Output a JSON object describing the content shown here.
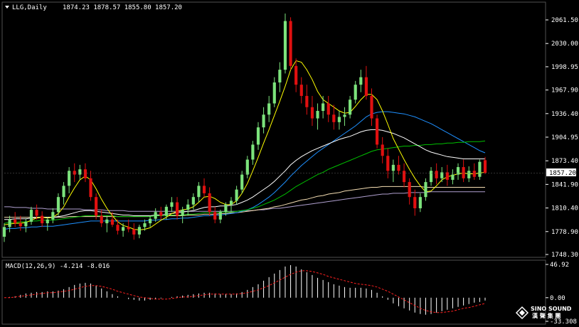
{
  "header": {
    "symbol": "LLG,Daily",
    "ohlc": "1874.23 1878.57 1855.80 1857.20"
  },
  "current_price": "1857.20",
  "price_axis": {
    "ticks": [
      "2061.50",
      "2030.00",
      "1998.95",
      "1967.90",
      "1936.40",
      "1904.95",
      "1873.40",
      "1841.90",
      "1810.40",
      "1778.90",
      "1748.30"
    ]
  },
  "macd_panel": {
    "label": "MACD(12,26,9) -4.214 -8.016",
    "ticks": [
      "46.92",
      "0.00",
      "-33.308"
    ]
  },
  "logo": {
    "name": "SINO SOUND",
    "sub": "漢 聲 集 團"
  },
  "colors": {
    "background": "#000000",
    "bull_candle": "#7ce37c",
    "bear_candle": "#e01010",
    "ma_fast": "#ffff00",
    "ma_mid": "#ffffff",
    "ma_green": "#00c000",
    "ma_blue": "#1e90ff",
    "ma_beige": "#f5deb3",
    "ma_violet": "#b0a0d0",
    "macd_hist": "#ffffff",
    "macd_signal": "#ff2020",
    "grid": "#3a3a3a",
    "price_box": "#ffffff"
  },
  "chart_data": [
    {
      "type": "candlestick",
      "title": "LLG,Daily",
      "ylim": [
        1748.3,
        2075
      ],
      "candles": [
        [
          1772,
          1790,
          1765,
          1785
        ],
        [
          1785,
          1800,
          1778,
          1795
        ],
        [
          1795,
          1805,
          1785,
          1790
        ],
        [
          1790,
          1800,
          1780,
          1786
        ],
        [
          1786,
          1796,
          1778,
          1792
        ],
        [
          1792,
          1812,
          1788,
          1808
        ],
        [
          1808,
          1815,
          1795,
          1800
        ],
        [
          1800,
          1806,
          1785,
          1790
        ],
        [
          1790,
          1798,
          1780,
          1795
        ],
        [
          1795,
          1810,
          1790,
          1805
        ],
        [
          1805,
          1830,
          1800,
          1825
        ],
        [
          1825,
          1845,
          1815,
          1840
        ],
        [
          1840,
          1865,
          1830,
          1860
        ],
        [
          1860,
          1870,
          1845,
          1855
        ],
        [
          1855,
          1868,
          1848,
          1862
        ],
        [
          1862,
          1870,
          1845,
          1850
        ],
        [
          1850,
          1860,
          1820,
          1825
        ],
        [
          1825,
          1830,
          1795,
          1800
        ],
        [
          1800,
          1808,
          1785,
          1790
        ],
        [
          1790,
          1800,
          1778,
          1795
        ],
        [
          1795,
          1805,
          1785,
          1788
        ],
        [
          1788,
          1795,
          1775,
          1780
        ],
        [
          1780,
          1790,
          1772,
          1785
        ],
        [
          1785,
          1795,
          1778,
          1782
        ],
        [
          1782,
          1790,
          1768,
          1775
        ],
        [
          1775,
          1788,
          1770,
          1785
        ],
        [
          1785,
          1795,
          1780,
          1790
        ],
        [
          1790,
          1800,
          1785,
          1796
        ],
        [
          1796,
          1810,
          1792,
          1805
        ],
        [
          1805,
          1812,
          1795,
          1800
        ],
        [
          1800,
          1815,
          1795,
          1812
        ],
        [
          1812,
          1825,
          1805,
          1818
        ],
        [
          1818,
          1825,
          1795,
          1800
        ],
        [
          1800,
          1812,
          1790,
          1808
        ],
        [
          1808,
          1822,
          1800,
          1815
        ],
        [
          1815,
          1830,
          1808,
          1825
        ],
        [
          1825,
          1845,
          1818,
          1840
        ],
        [
          1840,
          1850,
          1825,
          1830
        ],
        [
          1830,
          1838,
          1800,
          1805
        ],
        [
          1805,
          1812,
          1790,
          1795
        ],
        [
          1795,
          1808,
          1790,
          1805
        ],
        [
          1805,
          1818,
          1800,
          1815
        ],
        [
          1815,
          1825,
          1805,
          1820
        ],
        [
          1820,
          1840,
          1815,
          1835
        ],
        [
          1835,
          1860,
          1830,
          1855
        ],
        [
          1855,
          1880,
          1850,
          1875
        ],
        [
          1875,
          1900,
          1868,
          1895
        ],
        [
          1895,
          1925,
          1888,
          1918
        ],
        [
          1918,
          1945,
          1910,
          1935
        ],
        [
          1935,
          1960,
          1925,
          1950
        ],
        [
          1950,
          1985,
          1945,
          1978
        ],
        [
          1978,
          2005,
          1965,
          1995
        ],
        [
          1995,
          2070,
          1990,
          2060
        ],
        [
          2060,
          2065,
          1995,
          2000
        ],
        [
          2000,
          2010,
          1965,
          1975
        ],
        [
          1975,
          1985,
          1950,
          1960
        ],
        [
          1960,
          1975,
          1935,
          1945
        ],
        [
          1945,
          1960,
          1920,
          1930
        ],
        [
          1930,
          1950,
          1915,
          1940
        ],
        [
          1940,
          1960,
          1930,
          1950
        ],
        [
          1950,
          1960,
          1925,
          1935
        ],
        [
          1935,
          1948,
          1915,
          1925
        ],
        [
          1925,
          1940,
          1915,
          1932
        ],
        [
          1932,
          1945,
          1920,
          1935
        ],
        [
          1935,
          1960,
          1930,
          1955
        ],
        [
          1955,
          1980,
          1950,
          1975
        ],
        [
          1975,
          1995,
          1965,
          1985
        ],
        [
          1985,
          2000,
          1955,
          1960
        ],
        [
          1960,
          1970,
          1920,
          1930
        ],
        [
          1930,
          1935,
          1890,
          1895
        ],
        [
          1895,
          1905,
          1870,
          1880
        ],
        [
          1880,
          1890,
          1850,
          1860
        ],
        [
          1860,
          1875,
          1845,
          1868
        ],
        [
          1868,
          1880,
          1855,
          1860
        ],
        [
          1860,
          1870,
          1838,
          1845
        ],
        [
          1845,
          1850,
          1815,
          1825
        ],
        [
          1825,
          1835,
          1800,
          1810
        ],
        [
          1810,
          1830,
          1805,
          1825
        ],
        [
          1825,
          1850,
          1820,
          1845
        ],
        [
          1845,
          1865,
          1840,
          1860
        ],
        [
          1860,
          1870,
          1842,
          1850
        ],
        [
          1850,
          1865,
          1845,
          1858
        ],
        [
          1858,
          1868,
          1840,
          1848
        ],
        [
          1848,
          1862,
          1842,
          1855
        ],
        [
          1855,
          1870,
          1848,
          1865
        ],
        [
          1865,
          1875,
          1845,
          1850
        ],
        [
          1850,
          1866,
          1845,
          1860
        ],
        [
          1860,
          1870,
          1848,
          1852
        ],
        [
          1852,
          1875,
          1848,
          1872
        ],
        [
          1874.23,
          1878.57,
          1855.8,
          1857.2
        ]
      ],
      "ma_fast": [
        1788,
        1789,
        1790,
        1790,
        1791,
        1794,
        1797,
        1798,
        1797,
        1798,
        1803,
        1812,
        1825,
        1837,
        1848,
        1853,
        1848,
        1836,
        1822,
        1810,
        1800,
        1792,
        1787,
        1785,
        1782,
        1781,
        1782,
        1784,
        1789,
        1794,
        1798,
        1803,
        1806,
        1808,
        1809,
        1812,
        1818,
        1825,
        1826,
        1823,
        1818,
        1815,
        1815,
        1820,
        1830,
        1843,
        1860,
        1878,
        1897,
        1915,
        1934,
        1953,
        1973,
        1995,
        2007,
        2005,
        1995,
        1982,
        1966,
        1955,
        1950,
        1945,
        1940,
        1937,
        1938,
        1946,
        1955,
        1962,
        1962,
        1955,
        1940,
        1922,
        1903,
        1889,
        1875,
        1862,
        1850,
        1840,
        1832,
        1833,
        1840,
        1848,
        1852,
        1854,
        1856,
        1857,
        1856,
        1856,
        1857,
        1858
      ],
      "ma_mid": [
        1795,
        1795,
        1796,
        1796,
        1796,
        1797,
        1797,
        1798,
        1798,
        1798,
        1799,
        1800,
        1802,
        1804,
        1806,
        1807,
        1807,
        1806,
        1805,
        1804,
        1803,
        1802,
        1801,
        1801,
        1800,
        1800,
        1800,
        1800,
        1801,
        1801,
        1802,
        1803,
        1804,
        1805,
        1806,
        1807,
        1809,
        1811,
        1812,
        1812,
        1813,
        1813,
        1814,
        1815,
        1818,
        1821,
        1825,
        1830,
        1835,
        1840,
        1846,
        1853,
        1860,
        1868,
        1874,
        1879,
        1883,
        1887,
        1890,
        1893,
        1896,
        1899,
        1902,
        1904,
        1906,
        1909,
        1912,
        1914,
        1915,
        1915,
        1914,
        1912,
        1910,
        1907,
        1904,
        1900,
        1896,
        1892,
        1888,
        1885,
        1883,
        1881,
        1879,
        1878,
        1877,
        1876,
        1876,
        1876,
        1876,
        1876
      ],
      "ma_green": [
        1790,
        1791,
        1791,
        1792,
        1792,
        1793,
        1793,
        1794,
        1794,
        1794,
        1795,
        1796,
        1797,
        1798,
        1799,
        1800,
        1800,
        1800,
        1800,
        1800,
        1800,
        1799,
        1799,
        1799,
        1799,
        1799,
        1799,
        1799,
        1800,
        1800,
        1800,
        1801,
        1801,
        1801,
        1802,
        1802,
        1803,
        1804,
        1804,
        1804,
        1805,
        1805,
        1805,
        1806,
        1807,
        1808,
        1810,
        1812,
        1815,
        1818,
        1821,
        1825,
        1829,
        1834,
        1839,
        1843,
        1847,
        1851,
        1855,
        1858,
        1862,
        1865,
        1868,
        1871,
        1874,
        1877,
        1880,
        1883,
        1886,
        1888,
        1889,
        1890,
        1891,
        1892,
        1893,
        1893,
        1894,
        1894,
        1895,
        1895,
        1896,
        1896,
        1897,
        1897,
        1898,
        1898,
        1899,
        1899,
        1899,
        1900
      ],
      "ma_blue": [
        1782,
        1783,
        1783,
        1784,
        1784,
        1785,
        1785,
        1786,
        1786,
        1786,
        1787,
        1788,
        1789,
        1790,
        1791,
        1792,
        1793,
        1793,
        1793,
        1793,
        1793,
        1793,
        1793,
        1793,
        1793,
        1793,
        1793,
        1794,
        1794,
        1795,
        1795,
        1796,
        1796,
        1797,
        1797,
        1798,
        1799,
        1800,
        1800,
        1801,
        1801,
        1802,
        1803,
        1804,
        1806,
        1808,
        1811,
        1815,
        1820,
        1825,
        1831,
        1838,
        1845,
        1853,
        1860,
        1867,
        1873,
        1879,
        1885,
        1890,
        1895,
        1900,
        1905,
        1910,
        1915,
        1920,
        1926,
        1932,
        1936,
        1938,
        1939,
        1939,
        1938,
        1937,
        1936,
        1934,
        1932,
        1929,
        1926,
        1923,
        1919,
        1915,
        1911,
        1907,
        1903,
        1899,
        1895,
        1891,
        1887,
        1884
      ],
      "ma_beige": [
        1798,
        1798,
        1798,
        1798,
        1798,
        1798,
        1798,
        1798,
        1798,
        1798,
        1798,
        1798,
        1799,
        1799,
        1799,
        1799,
        1799,
        1799,
        1799,
        1799,
        1799,
        1799,
        1799,
        1799,
        1799,
        1799,
        1799,
        1799,
        1800,
        1800,
        1800,
        1800,
        1800,
        1800,
        1801,
        1801,
        1801,
        1802,
        1802,
        1802,
        1803,
        1803,
        1804,
        1804,
        1805,
        1806,
        1807,
        1808,
        1809,
        1810,
        1812,
        1813,
        1815,
        1817,
        1819,
        1821,
        1822,
        1824,
        1826,
        1827,
        1829,
        1830,
        1831,
        1833,
        1834,
        1835,
        1836,
        1837,
        1838,
        1838,
        1839,
        1839,
        1839,
        1839,
        1839,
        1839,
        1839,
        1839,
        1838,
        1838,
        1838,
        1838,
        1838,
        1838,
        1838,
        1838,
        1838,
        1838,
        1838,
        1838
      ],
      "ma_violet": [
        1812,
        1812,
        1811,
        1811,
        1811,
        1810,
        1810,
        1810,
        1809,
        1809,
        1809,
        1809,
        1809,
        1809,
        1809,
        1808,
        1808,
        1808,
        1808,
        1807,
        1807,
        1807,
        1807,
        1806,
        1806,
        1806,
        1806,
        1806,
        1806,
        1806,
        1806,
        1806,
        1806,
        1806,
        1806,
        1806,
        1806,
        1806,
        1806,
        1806,
        1806,
        1806,
        1806,
        1806,
        1807,
        1807,
        1807,
        1808,
        1808,
        1809,
        1810,
        1810,
        1811,
        1812,
        1813,
        1814,
        1815,
        1816,
        1817,
        1818,
        1819,
        1820,
        1821,
        1822,
        1823,
        1824,
        1825,
        1826,
        1827,
        1828,
        1829,
        1829,
        1830,
        1830,
        1830,
        1831,
        1831,
        1831,
        1831,
        1832,
        1832,
        1832,
        1832,
        1832,
        1832,
        1832,
        1832,
        1832,
        1832,
        1832
      ]
    },
    {
      "type": "bar",
      "title": "MACD(12,26,9) -4.214 -8.016",
      "ylim": [
        -33.308,
        46.92
      ],
      "histogram": [
        0,
        1,
        2,
        4,
        6,
        7,
        8,
        8,
        9,
        9,
        10,
        12,
        15,
        18,
        20,
        21,
        20,
        17,
        13,
        9,
        5,
        2,
        0,
        -2,
        -3,
        -4,
        -4,
        -3,
        -2,
        -1,
        0,
        1,
        2,
        3,
        4,
        5,
        6,
        7,
        7,
        6,
        5,
        5,
        5,
        6,
        8,
        11,
        15,
        19,
        24,
        29,
        34,
        39,
        44,
        46,
        44,
        40,
        36,
        32,
        28,
        25,
        22,
        19,
        17,
        15,
        14,
        14,
        14,
        13,
        11,
        7,
        2,
        -3,
        -8,
        -12,
        -15,
        -18,
        -21,
        -23,
        -24,
        -23,
        -21,
        -19,
        -17,
        -15,
        -13,
        -11,
        -9,
        -7,
        -6,
        -4
      ],
      "signal": [
        0,
        0,
        1,
        2,
        3,
        4,
        5,
        6,
        7,
        7,
        8,
        9,
        10,
        12,
        14,
        16,
        17,
        17,
        16,
        14,
        12,
        9,
        7,
        5,
        3,
        1,
        0,
        -1,
        -2,
        -2,
        -2,
        -1,
        0,
        1,
        1,
        2,
        3,
        4,
        5,
        5,
        5,
        5,
        5,
        5,
        6,
        7,
        9,
        11,
        14,
        17,
        21,
        25,
        29,
        33,
        36,
        38,
        38,
        37,
        35,
        33,
        30,
        28,
        26,
        24,
        22,
        20,
        19,
        18,
        17,
        15,
        12,
        9,
        5,
        1,
        -3,
        -7,
        -11,
        -15,
        -18,
        -20,
        -21,
        -21,
        -20,
        -19,
        -17,
        -15,
        -14,
        -12,
        -10,
        -8
      ]
    }
  ]
}
